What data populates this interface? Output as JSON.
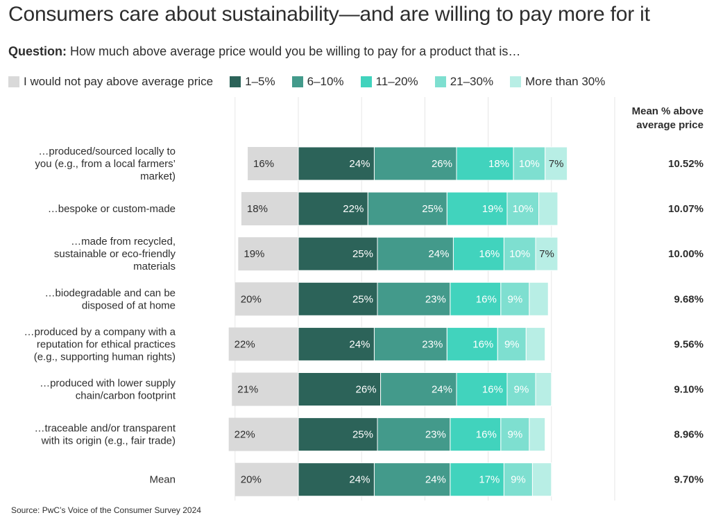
{
  "title": "Consumers care about sustainability—and are willing to pay more for it",
  "question": {
    "label": "Question:",
    "text": "How much above average price would you be willing to pay for a product that is…"
  },
  "mean_header": [
    "Mean % above",
    "average price"
  ],
  "source": "Source: PwC’s Voice of the Consumer Survey 2024",
  "colors": {
    "no_pay": "#d9d9d9",
    "1_5": "#2c6359",
    "6_10": "#439a8b",
    "11_20": "#41d3bd",
    "21_30": "#7edfd0",
    "more_30": "#b8eee5"
  },
  "chart_data": {
    "type": "bar",
    "stacked": true,
    "orientation": "horizontal",
    "categories": [
      [
        "…produced/sourced locally to",
        "you (e.g., from a local farmers’",
        "market)"
      ],
      [
        "…bespoke or custom-made"
      ],
      [
        "…made from recycled,",
        "sustainable or eco-friendly",
        "materials"
      ],
      [
        "…biodegradable and can be",
        "disposed of at home"
      ],
      [
        "…produced by a company with a",
        "reputation for ethical practices",
        "(e.g., supporting human rights)"
      ],
      [
        "…produced with lower supply",
        "chain/carbon footprint"
      ],
      [
        "…traceable and/or transparent",
        "with its origin (e.g., fair trade)"
      ],
      [
        "Mean"
      ]
    ],
    "series": [
      {
        "name": "I would not pay above average price",
        "color_key": "no_pay",
        "values": [
          16,
          18,
          19,
          20,
          22,
          21,
          22,
          20
        ],
        "labels": [
          "16%",
          "18%",
          "19%",
          "20%",
          "22%",
          "21%",
          "22%",
          "20%"
        ]
      },
      {
        "name": "1–5%",
        "color_key": "1_5",
        "values": [
          24,
          22,
          25,
          25,
          24,
          26,
          25,
          24
        ],
        "labels": [
          "24%",
          "22%",
          "25%",
          "25%",
          "24%",
          "26%",
          "25%",
          "24%"
        ]
      },
      {
        "name": "6–10%",
        "color_key": "6_10",
        "values": [
          26,
          25,
          24,
          23,
          23,
          24,
          23,
          24
        ],
        "labels": [
          "26%",
          "25%",
          "24%",
          "23%",
          "23%",
          "24%",
          "23%",
          "24%"
        ]
      },
      {
        "name": "11–20%",
        "color_key": "11_20",
        "values": [
          18,
          19,
          16,
          16,
          16,
          16,
          16,
          17
        ],
        "labels": [
          "18%",
          "19%",
          "16%",
          "16%",
          "16%",
          "16%",
          "16%",
          "17%"
        ]
      },
      {
        "name": "21–30%",
        "color_key": "21_30",
        "values": [
          10,
          10,
          10,
          9,
          9,
          9,
          9,
          9
        ],
        "labels": [
          "10%",
          "10%",
          "10%",
          "9%",
          "9%",
          "9%",
          "9%",
          "9%"
        ]
      },
      {
        "name": "More than 30%",
        "color_key": "more_30",
        "values": [
          7,
          6,
          7,
          6,
          6,
          5,
          5,
          6
        ],
        "labels": [
          "7%",
          "",
          "7%",
          "",
          "",
          "",
          "",
          ""
        ]
      }
    ],
    "mean_values": [
      "10.52%",
      "10.07%",
      "10.00%",
      "9.68%",
      "9.56%",
      "9.10%",
      "8.96%",
      "9.70%"
    ],
    "grid": true
  }
}
